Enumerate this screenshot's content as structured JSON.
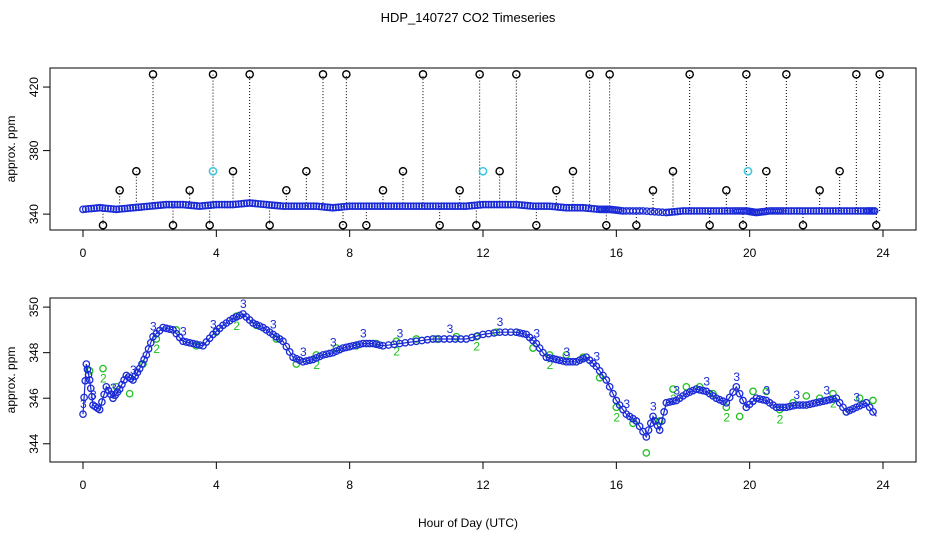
{
  "chart_data": [
    {
      "type": "scatter",
      "title": "HDP_140727  CO2 Timeseries",
      "xlabel": "",
      "ylabel": "approx. ppm",
      "xlim": [
        0,
        24
      ],
      "ylim": [
        330,
        432
      ],
      "x_ticks": [
        "0",
        "4",
        "8",
        "12",
        "16",
        "20",
        "24"
      ],
      "y_ticks": [
        "340",
        "380",
        "420"
      ],
      "grid": false,
      "series": [
        {
          "name": "mean",
          "color": "#1a2ad6",
          "marker": "circle",
          "x": [
            0.0,
            0.5,
            1.0,
            1.5,
            2.0,
            2.5,
            3.0,
            3.5,
            4.0,
            4.5,
            5.0,
            5.5,
            6.0,
            6.5,
            7.0,
            7.5,
            8.0,
            8.5,
            9.0,
            9.5,
            10.0,
            10.5,
            11.0,
            11.5,
            12.0,
            12.5,
            13.0,
            13.5,
            14.0,
            14.5,
            15.0,
            15.5,
            15.8,
            16.2,
            16.8,
            17.5,
            18.0,
            18.5,
            19.0,
            19.5,
            19.9,
            20.2,
            20.6,
            21.0,
            21.5,
            22.0,
            22.5,
            23.0,
            23.5,
            23.8
          ],
          "y": [
            343,
            344,
            343,
            344,
            345,
            346,
            346,
            345,
            346,
            346,
            347,
            346,
            345,
            345,
            345,
            344,
            345,
            345,
            345,
            345,
            345,
            345,
            345,
            345,
            346,
            346,
            346,
            345,
            345,
            344,
            344,
            343,
            343,
            342,
            342,
            341,
            342,
            342,
            342,
            342,
            342,
            341,
            342,
            342,
            342,
            342,
            342,
            342,
            342,
            342
          ]
        },
        {
          "name": "max",
          "color": "#000000",
          "marker": "circle",
          "x": [
            0.6,
            1.1,
            1.6,
            2.1,
            2.7,
            3.2,
            3.8,
            3.9,
            4.5,
            5.0,
            5.6,
            6.1,
            6.7,
            7.2,
            7.8,
            7.9,
            8.5,
            9.0,
            9.6,
            10.2,
            10.7,
            11.3,
            11.8,
            11.9,
            12.5,
            13.0,
            13.6,
            14.2,
            14.7,
            15.2,
            15.7,
            15.8,
            16.6,
            17.1,
            17.7,
            18.2,
            18.8,
            19.3,
            19.8,
            19.9,
            20.5,
            21.1,
            21.6,
            22.1,
            22.7,
            23.2,
            23.8,
            23.9
          ],
          "y": [
            333,
            355,
            367,
            428,
            333,
            355,
            333,
            428,
            367,
            428,
            333,
            355,
            367,
            428,
            333,
            428,
            333,
            355,
            367,
            428,
            333,
            355,
            333,
            428,
            367,
            428,
            333,
            355,
            367,
            428,
            333,
            428,
            333,
            355,
            367,
            428,
            333,
            355,
            333,
            428,
            367,
            428,
            333,
            355,
            367,
            428,
            333,
            428
          ]
        },
        {
          "name": "cyan",
          "color": "#3ec8e0",
          "marker": "circle",
          "x": [
            3.9,
            12.0,
            19.95
          ],
          "y": [
            367,
            367,
            367
          ]
        }
      ]
    },
    {
      "type": "scatter",
      "title": "",
      "xlabel": "Hour of Day (UTC)",
      "ylabel": "approx. ppm",
      "xlim": [
        0,
        24
      ],
      "ylim": [
        343.2,
        350.4
      ],
      "x_ticks": [
        "0",
        "4",
        "8",
        "12",
        "16",
        "20",
        "24"
      ],
      "y_ticks": [
        "344",
        "346",
        "348",
        "350"
      ],
      "grid": false,
      "point_label": "3",
      "point_label_alt": "2",
      "series": [
        {
          "name": "blue",
          "color": "#1a2ad6",
          "marker": "circle",
          "x": [
            0.0,
            0.1,
            0.2,
            0.3,
            0.5,
            0.7,
            0.9,
            1.1,
            1.3,
            1.5,
            1.7,
            1.9,
            2.1,
            2.4,
            2.7,
            3.0,
            3.3,
            3.6,
            3.9,
            4.2,
            4.5,
            4.8,
            5.1,
            5.4,
            5.7,
            6.0,
            6.3,
            6.6,
            6.9,
            7.2,
            7.5,
            7.8,
            8.1,
            8.4,
            8.7,
            9.0,
            9.5,
            10.0,
            10.5,
            11.0,
            11.5,
            12.0,
            12.5,
            13.0,
            13.3,
            13.6,
            13.9,
            14.2,
            14.5,
            14.8,
            15.1,
            15.4,
            15.7,
            16.0,
            16.3,
            16.6,
            16.9,
            17.1,
            17.3,
            17.5,
            17.8,
            18.1,
            18.4,
            18.7,
            19.0,
            19.3,
            19.6,
            19.9,
            20.2,
            20.5,
            20.8,
            21.1,
            21.4,
            21.7,
            22.0,
            22.3,
            22.6,
            22.9,
            23.2,
            23.5,
            23.8
          ],
          "y": [
            345.3,
            347.5,
            346.8,
            345.7,
            345.5,
            346.5,
            346.0,
            346.4,
            347.0,
            346.8,
            347.3,
            347.9,
            348.7,
            349.1,
            349.0,
            348.5,
            348.4,
            348.3,
            348.8,
            349.2,
            349.5,
            349.7,
            349.3,
            349.1,
            348.8,
            348.5,
            347.8,
            347.6,
            347.7,
            347.9,
            348.0,
            348.2,
            348.3,
            348.4,
            348.4,
            348.3,
            348.4,
            348.5,
            348.6,
            348.6,
            348.6,
            348.8,
            348.9,
            348.9,
            348.8,
            348.4,
            347.8,
            347.7,
            347.6,
            347.6,
            347.8,
            347.4,
            346.8,
            345.9,
            345.3,
            345.0,
            344.3,
            345.2,
            344.6,
            345.8,
            345.9,
            346.2,
            346.4,
            346.3,
            346.0,
            345.8,
            346.5,
            345.6,
            346.0,
            345.9,
            345.6,
            345.6,
            345.7,
            345.7,
            345.8,
            345.9,
            346.0,
            345.4,
            345.6,
            345.8,
            345.2
          ]
        },
        {
          "name": "green",
          "color": "#20c020",
          "marker": "circle",
          "x": [
            0.2,
            0.6,
            1.0,
            1.4,
            1.8,
            2.2,
            2.8,
            3.4,
            4.0,
            4.6,
            5.2,
            5.8,
            6.4,
            7.0,
            7.6,
            8.2,
            8.8,
            9.4,
            10.0,
            10.6,
            11.2,
            11.8,
            12.4,
            13.0,
            13.5,
            14.0,
            14.5,
            15.0,
            15.5,
            16.0,
            16.5,
            16.9,
            17.3,
            17.7,
            18.1,
            18.5,
            18.9,
            19.3,
            19.7,
            20.1,
            20.5,
            20.9,
            21.3,
            21.7,
            22.1,
            22.5,
            22.9,
            23.3,
            23.7
          ],
          "y": [
            347.2,
            347.3,
            346.5,
            346.2,
            347.5,
            348.6,
            349.0,
            348.3,
            348.9,
            349.6,
            349.2,
            348.6,
            347.5,
            347.9,
            348.2,
            348.3,
            348.4,
            348.5,
            348.6,
            348.6,
            348.7,
            348.7,
            348.9,
            348.9,
            348.2,
            347.9,
            347.9,
            347.8,
            346.9,
            345.6,
            344.9,
            343.6,
            345.0,
            346.4,
            346.5,
            346.5,
            346.2,
            345.6,
            345.2,
            346.3,
            346.3,
            345.5,
            345.8,
            346.1,
            346.0,
            346.2,
            345.4,
            346.0,
            345.9
          ]
        }
      ]
    }
  ]
}
